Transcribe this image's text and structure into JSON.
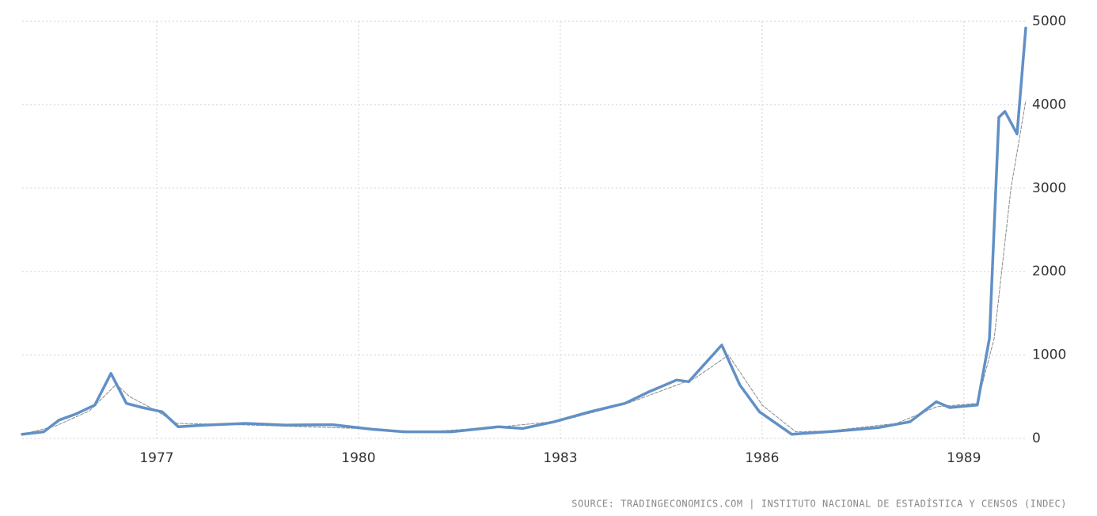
{
  "chart_data": {
    "type": "line",
    "source": "SOURCE: TRADINGECONOMICS.COM | INSTITUTO NACIONAL DE ESTADÍSTICA Y CENSOS (INDEC)",
    "xlim": [
      1975.0,
      1989.92
    ],
    "xticks": [
      1977,
      1980,
      1983,
      1986,
      1989
    ],
    "ylim": [
      0,
      5000
    ],
    "yticks": [
      0,
      1000,
      2000,
      3000,
      4000,
      5000
    ],
    "grid": true,
    "series": [
      {
        "color": "#6190c6",
        "width": 3.5,
        "dash": false,
        "x": [
          1975.0,
          1975.32,
          1975.55,
          1975.79,
          1976.08,
          1976.32,
          1976.55,
          1976.79,
          1977.08,
          1977.32,
          1977.73,
          1978.32,
          1978.91,
          1979.61,
          1980.2,
          1980.67,
          1981.38,
          1982.08,
          1982.44,
          1982.91,
          1983.44,
          1983.96,
          1984.32,
          1984.73,
          1984.91,
          1985.02,
          1985.4,
          1985.67,
          1985.96,
          1986.44,
          1987.15,
          1987.73,
          1988.2,
          1988.59,
          1988.79,
          1989.2,
          1989.38,
          1989.52,
          1989.61,
          1989.79,
          1989.92
        ],
        "values": [
          50,
          80,
          220,
          290,
          400,
          780,
          420,
          370,
          320,
          140,
          160,
          180,
          160,
          165,
          110,
          80,
          80,
          140,
          120,
          200,
          320,
          420,
          560,
          700,
          680,
          780,
          1120,
          640,
          320,
          50,
          90,
          130,
          200,
          440,
          370,
          400,
          1200,
          3850,
          3920,
          3650,
          4920
        ]
      },
      {
        "color": "#8a8a8a",
        "width": 1,
        "dash": true,
        "x": [
          1975.0,
          1975.5,
          1976.0,
          1976.4,
          1976.6,
          1977.0,
          1977.3,
          1978.0,
          1980.0,
          1981.0,
          1982.0,
          1983.0,
          1984.0,
          1985.0,
          1985.5,
          1986.0,
          1986.5,
          1987.0,
          1988.0,
          1988.6,
          1989.2,
          1989.45,
          1989.7,
          1989.92
        ],
        "values": [
          50,
          150,
          330,
          650,
          500,
          330,
          180,
          170,
          120,
          80,
          130,
          210,
          420,
          720,
          1000,
          400,
          80,
          90,
          180,
          380,
          420,
          1200,
          3000,
          4050
        ]
      }
    ]
  }
}
